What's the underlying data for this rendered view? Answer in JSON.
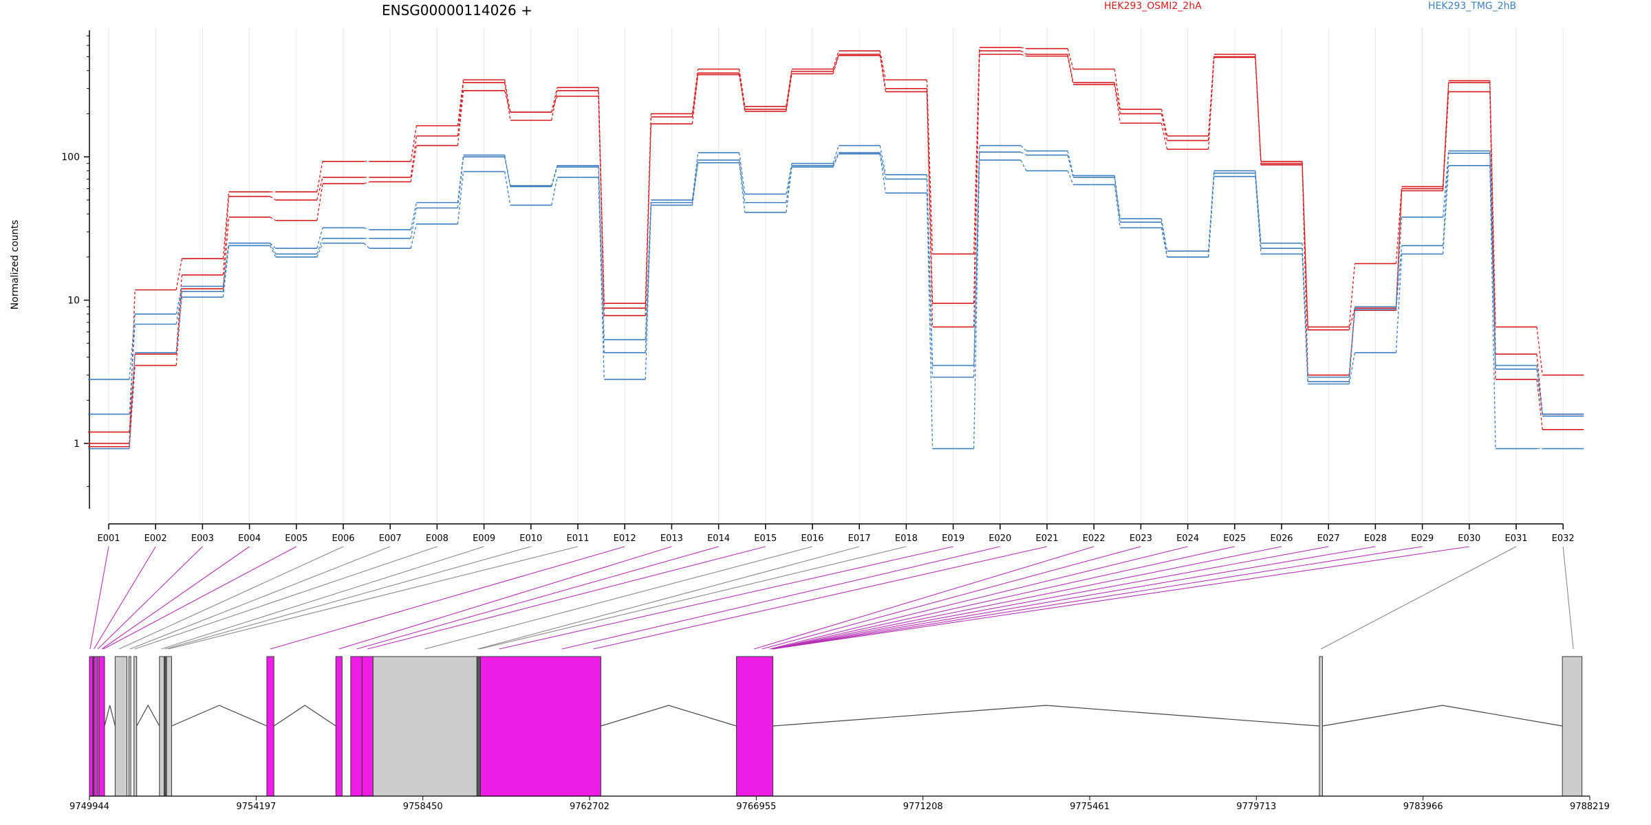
{
  "chart_data": {
    "type": "line",
    "title": "ENSG00000114026 +",
    "ylabel": "Normalized counts",
    "yscale": "log",
    "ylim": [
      0.35,
      800
    ],
    "yticks": [
      1,
      10,
      100
    ],
    "ytick_labels": [
      "1",
      "10",
      "100"
    ],
    "categories": [
      "E001",
      "E002",
      "E003",
      "E004",
      "E005",
      "E006",
      "E007",
      "E008",
      "E009",
      "E010",
      "E011",
      "E012",
      "E013",
      "E014",
      "E015",
      "E016",
      "E017",
      "E018",
      "E019",
      "E020",
      "E021",
      "E022",
      "E023",
      "E024",
      "E025",
      "E026",
      "E027",
      "E028",
      "E029",
      "E030",
      "E031",
      "E032"
    ],
    "legend": [
      {
        "label": "HEK293_OSMI2_2hA",
        "color": "#d7191c"
      },
      {
        "label": "HEK293_TMG_2hB",
        "color": "#3d7fbf"
      }
    ],
    "series": [
      {
        "group": "HEK293_OSMI2_2hA",
        "color": "#d7191c",
        "values": [
          1.0,
          11.8,
          19.5,
          57,
          57,
          93,
          93,
          165,
          345,
          205,
          305,
          9.5,
          200,
          410,
          225,
          410,
          550,
          345,
          21,
          580,
          570,
          410,
          215,
          140,
          520,
          93,
          6.5,
          18,
          62,
          340,
          6.5,
          3.0
        ]
      },
      {
        "group": "HEK293_OSMI2_2hA",
        "color": "#d7191c",
        "values": [
          1.2,
          4.2,
          15,
          53,
          50,
          72,
          72,
          140,
          330,
          180,
          290,
          8.8,
          190,
          385,
          215,
          395,
          520,
          300,
          9.5,
          550,
          520,
          330,
          200,
          130,
          500,
          90,
          6.2,
          8.8,
          60,
          330,
          4.2,
          1.6
        ]
      },
      {
        "group": "HEK293_OSMI2_2hA",
        "color": "#d7191c",
        "values": [
          0.95,
          3.5,
          12,
          38,
          36,
          65,
          67,
          120,
          290,
          205,
          265,
          7.8,
          170,
          375,
          208,
          380,
          510,
          285,
          6.5,
          520,
          505,
          320,
          172,
          113,
          495,
          88,
          3.0,
          8.5,
          58,
          285,
          2.8,
          1.25
        ]
      },
      {
        "group": "HEK293_TMG_2hB",
        "color": "#3d7fbf",
        "values": [
          2.8,
          8.0,
          12.5,
          25,
          23,
          32,
          31,
          48,
          103,
          63,
          87,
          5.3,
          50,
          107,
          55,
          90,
          120,
          75,
          3.5,
          120,
          110,
          74,
          37,
          22,
          80,
          25,
          2.9,
          9.0,
          38,
          110,
          3.5,
          1.6
        ]
      },
      {
        "group": "HEK293_TMG_2hB",
        "color": "#3d7fbf",
        "values": [
          1.6,
          6.8,
          11.5,
          25,
          21,
          27,
          27,
          44,
          100,
          62,
          85,
          4.3,
          48,
          95,
          48,
          87,
          107,
          70,
          2.9,
          108,
          103,
          72,
          35,
          20,
          77,
          23,
          2.7,
          8.6,
          24,
          106,
          3.3,
          1.55
        ]
      },
      {
        "group": "HEK293_TMG_2hB",
        "color": "#3d7fbf",
        "values": [
          0.92,
          4.3,
          10.5,
          24,
          20,
          25,
          23,
          34,
          79,
          46,
          72,
          2.8,
          46,
          91,
          41,
          85,
          105,
          56,
          0.92,
          95,
          80,
          64,
          32,
          20,
          73,
          21,
          2.6,
          4.3,
          21,
          87,
          0.92,
          0.92
        ]
      }
    ],
    "annotation_track": {
      "coordinate_ticks": [
        "9749944",
        "9754197",
        "9758450",
        "9762702",
        "9766955",
        "9771208",
        "9775461",
        "9779713",
        "9783966",
        "9788219"
      ]
    }
  }
}
